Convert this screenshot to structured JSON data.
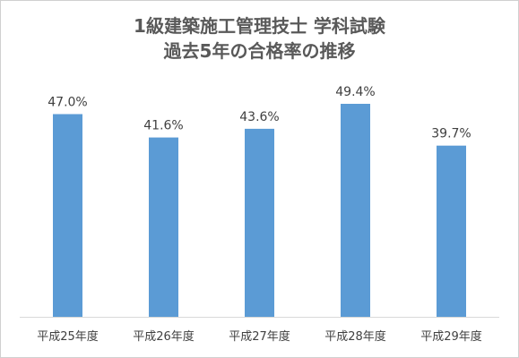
{
  "chart_data": {
    "type": "bar",
    "title_lines": [
      "1級建築施工管理技士 学科試験",
      "過去5年の合格率の推移"
    ],
    "categories": [
      "平成25年度",
      "平成26年度",
      "平成27年度",
      "平成28年度",
      "平成29年度"
    ],
    "values": [
      47.0,
      41.6,
      43.6,
      49.4,
      39.7
    ],
    "value_labels": [
      "47.0%",
      "41.6%",
      "43.6%",
      "49.4%",
      "39.7%"
    ],
    "series": [
      {
        "values": [
          47.0,
          41.6,
          43.6,
          49.4,
          39.7
        ]
      }
    ],
    "unit": "%",
    "ylim": [
      0,
      55
    ],
    "grid": false,
    "legend": "none",
    "bar_color": "#5b9bd5"
  }
}
